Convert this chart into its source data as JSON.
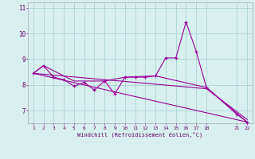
{
  "bg_color": "#d8eff0",
  "grid_color": "#b0d8d8",
  "line_color": "#990099",
  "xlabel": "Windchill (Refroidissement éolien,°C)",
  "ylim": [
    6.5,
    11.2
  ],
  "yticks": [
    7,
    8,
    9,
    10,
    11
  ],
  "xticks": [
    1,
    2,
    3,
    4,
    5,
    6,
    7,
    8,
    9,
    10,
    11,
    12,
    13,
    14,
    15,
    16,
    17,
    18,
    21,
    22
  ],
  "xlim": [
    0.5,
    22.5
  ],
  "series": [
    [
      1,
      8.45
    ],
    [
      2,
      8.75
    ],
    [
      3,
      8.3
    ],
    [
      4,
      8.2
    ],
    [
      5,
      7.95
    ],
    [
      6,
      8.1
    ],
    [
      7,
      7.8
    ],
    [
      8,
      8.15
    ],
    [
      9,
      7.65
    ],
    [
      10,
      8.3
    ],
    [
      11,
      8.3
    ],
    [
      12,
      8.3
    ],
    [
      13,
      8.35
    ],
    [
      14,
      9.05
    ],
    [
      15,
      9.05
    ],
    [
      16,
      10.45
    ],
    [
      17,
      9.3
    ],
    [
      18,
      7.9
    ],
    [
      21,
      6.85
    ],
    [
      22,
      6.55
    ]
  ],
  "line2": [
    [
      1,
      8.45
    ],
    [
      22,
      6.55
    ]
  ],
  "line3": [
    [
      1,
      8.45
    ],
    [
      18,
      7.85
    ],
    [
      22,
      6.65
    ]
  ],
  "line4": [
    [
      1,
      8.45
    ],
    [
      2,
      8.75
    ],
    [
      5,
      8.15
    ],
    [
      8,
      8.15
    ],
    [
      10,
      8.3
    ],
    [
      13,
      8.35
    ],
    [
      18,
      7.9
    ],
    [
      22,
      6.55
    ]
  ]
}
